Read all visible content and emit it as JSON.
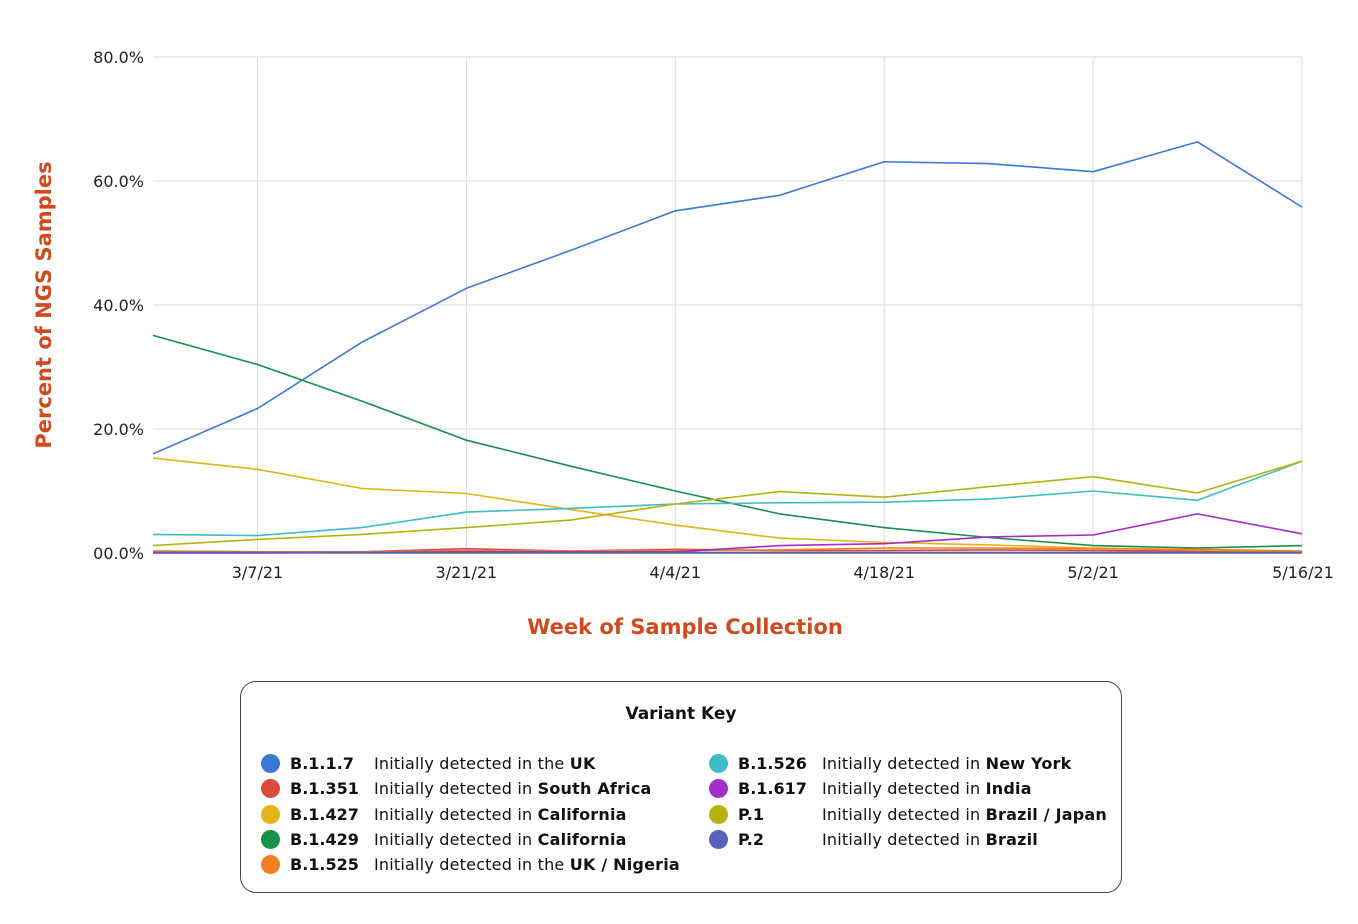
{
  "chart_data": {
    "type": "line",
    "title": "",
    "xlabel": "Week of Sample Collection",
    "ylabel": "Percent of NGS Samples",
    "ylim": [
      0,
      80
    ],
    "yticks": [
      0,
      20,
      40,
      60,
      80
    ],
    "ytick_labels": [
      "00.0%",
      "20.0%",
      "40.0%",
      "60.0%",
      "80.0%"
    ],
    "x": [
      "2/28/21",
      "3/7/21",
      "3/14/21",
      "3/21/21",
      "3/28/21",
      "4/4/21",
      "4/11/21",
      "4/18/21",
      "4/25/21",
      "5/2/21",
      "5/9/21",
      "5/16/21"
    ],
    "xtick_labels": [
      "3/7/21",
      "3/21/21",
      "4/4/21",
      "4/18/21",
      "5/2/21",
      "5/16/21"
    ],
    "grid": true,
    "series": [
      {
        "name": "B.1.1.7",
        "color": "#3a78d6",
        "values": [
          16.0,
          23.3,
          34.0,
          42.7,
          48.8,
          55.2,
          57.7,
          63.1,
          62.8,
          61.5,
          66.3,
          55.8
        ]
      },
      {
        "name": "B.1.351",
        "color": "#d94a38",
        "values": [
          0.3,
          0.2,
          0.2,
          0.7,
          0.3,
          0.6,
          0.4,
          0.4,
          0.5,
          0.4,
          0.3,
          0.2
        ]
      },
      {
        "name": "B.1.427",
        "color": "#e6b21a",
        "values": [
          15.3,
          13.5,
          10.4,
          9.6,
          7.0,
          4.5,
          2.4,
          1.7,
          1.3,
          0.8,
          0.5,
          0.2
        ]
      },
      {
        "name": "B.1.429",
        "color": "#1a8f4a",
        "values": [
          35.1,
          30.4,
          24.5,
          18.2,
          14.0,
          10.0,
          6.3,
          4.1,
          2.5,
          1.2,
          0.8,
          1.2
        ]
      },
      {
        "name": "B.1.525",
        "color": "#f07f22",
        "values": [
          0.3,
          0.2,
          0.2,
          0.4,
          0.3,
          0.4,
          0.5,
          0.8,
          0.8,
          0.7,
          0.6,
          0.3
        ]
      },
      {
        "name": "B.1.526",
        "color": "#3fbcc4",
        "values": [
          3.0,
          2.8,
          4.1,
          6.6,
          7.2,
          7.9,
          8.1,
          8.2,
          8.7,
          10.0,
          8.5,
          14.8
        ]
      },
      {
        "name": "B.1.617",
        "color": "#a22ec8",
        "values": [
          0.0,
          0.0,
          0.1,
          0.2,
          0.2,
          0.2,
          1.2,
          1.5,
          2.6,
          2.9,
          6.3,
          3.1
        ]
      },
      {
        "name": "P.1",
        "color": "#b5b20f",
        "values": [
          1.2,
          2.2,
          3.0,
          4.1,
          5.3,
          7.9,
          9.9,
          9.0,
          10.7,
          12.3,
          9.7,
          14.8
        ]
      },
      {
        "name": "P.2",
        "color": "#5663b8",
        "values": [
          0.1,
          0.1,
          0.1,
          0.1,
          0.1,
          0.1,
          0.1,
          0.1,
          0.1,
          0.1,
          0.1,
          0.1
        ]
      }
    ]
  },
  "legend": {
    "title": "Variant Key",
    "prefix": "Initially detected in",
    "left": [
      {
        "code": "B.1.1.7",
        "color": "#3a78d6",
        "plain": "Initially detected in the ",
        "bold": "UK"
      },
      {
        "code": "B.1.351",
        "color": "#d94a38",
        "plain": "Initially detected in ",
        "bold": "South Africa"
      },
      {
        "code": "B.1.427",
        "color": "#e6b21a",
        "plain": "Initially detected in ",
        "bold": "California"
      },
      {
        "code": "B.1.429",
        "color": "#1a8f4a",
        "plain": "Initially detected in ",
        "bold": "California"
      },
      {
        "code": "B.1.525",
        "color": "#f07f22",
        "plain": "Initially detected in the ",
        "bold": "UK / Nigeria"
      }
    ],
    "right": [
      {
        "code": "B.1.526",
        "color": "#3fbcc4",
        "plain": "Initially detected in ",
        "bold": "New York"
      },
      {
        "code": "B.1.617",
        "color": "#a22ec8",
        "plain": "Initially detected in ",
        "bold": "India"
      },
      {
        "code": "P.1",
        "color": "#b5b20f",
        "plain": "Initially detected in ",
        "bold": "Brazil / Japan"
      },
      {
        "code": "P.2",
        "color": "#5663b8",
        "plain": "Initially detected in ",
        "bold": "Brazil"
      }
    ]
  }
}
